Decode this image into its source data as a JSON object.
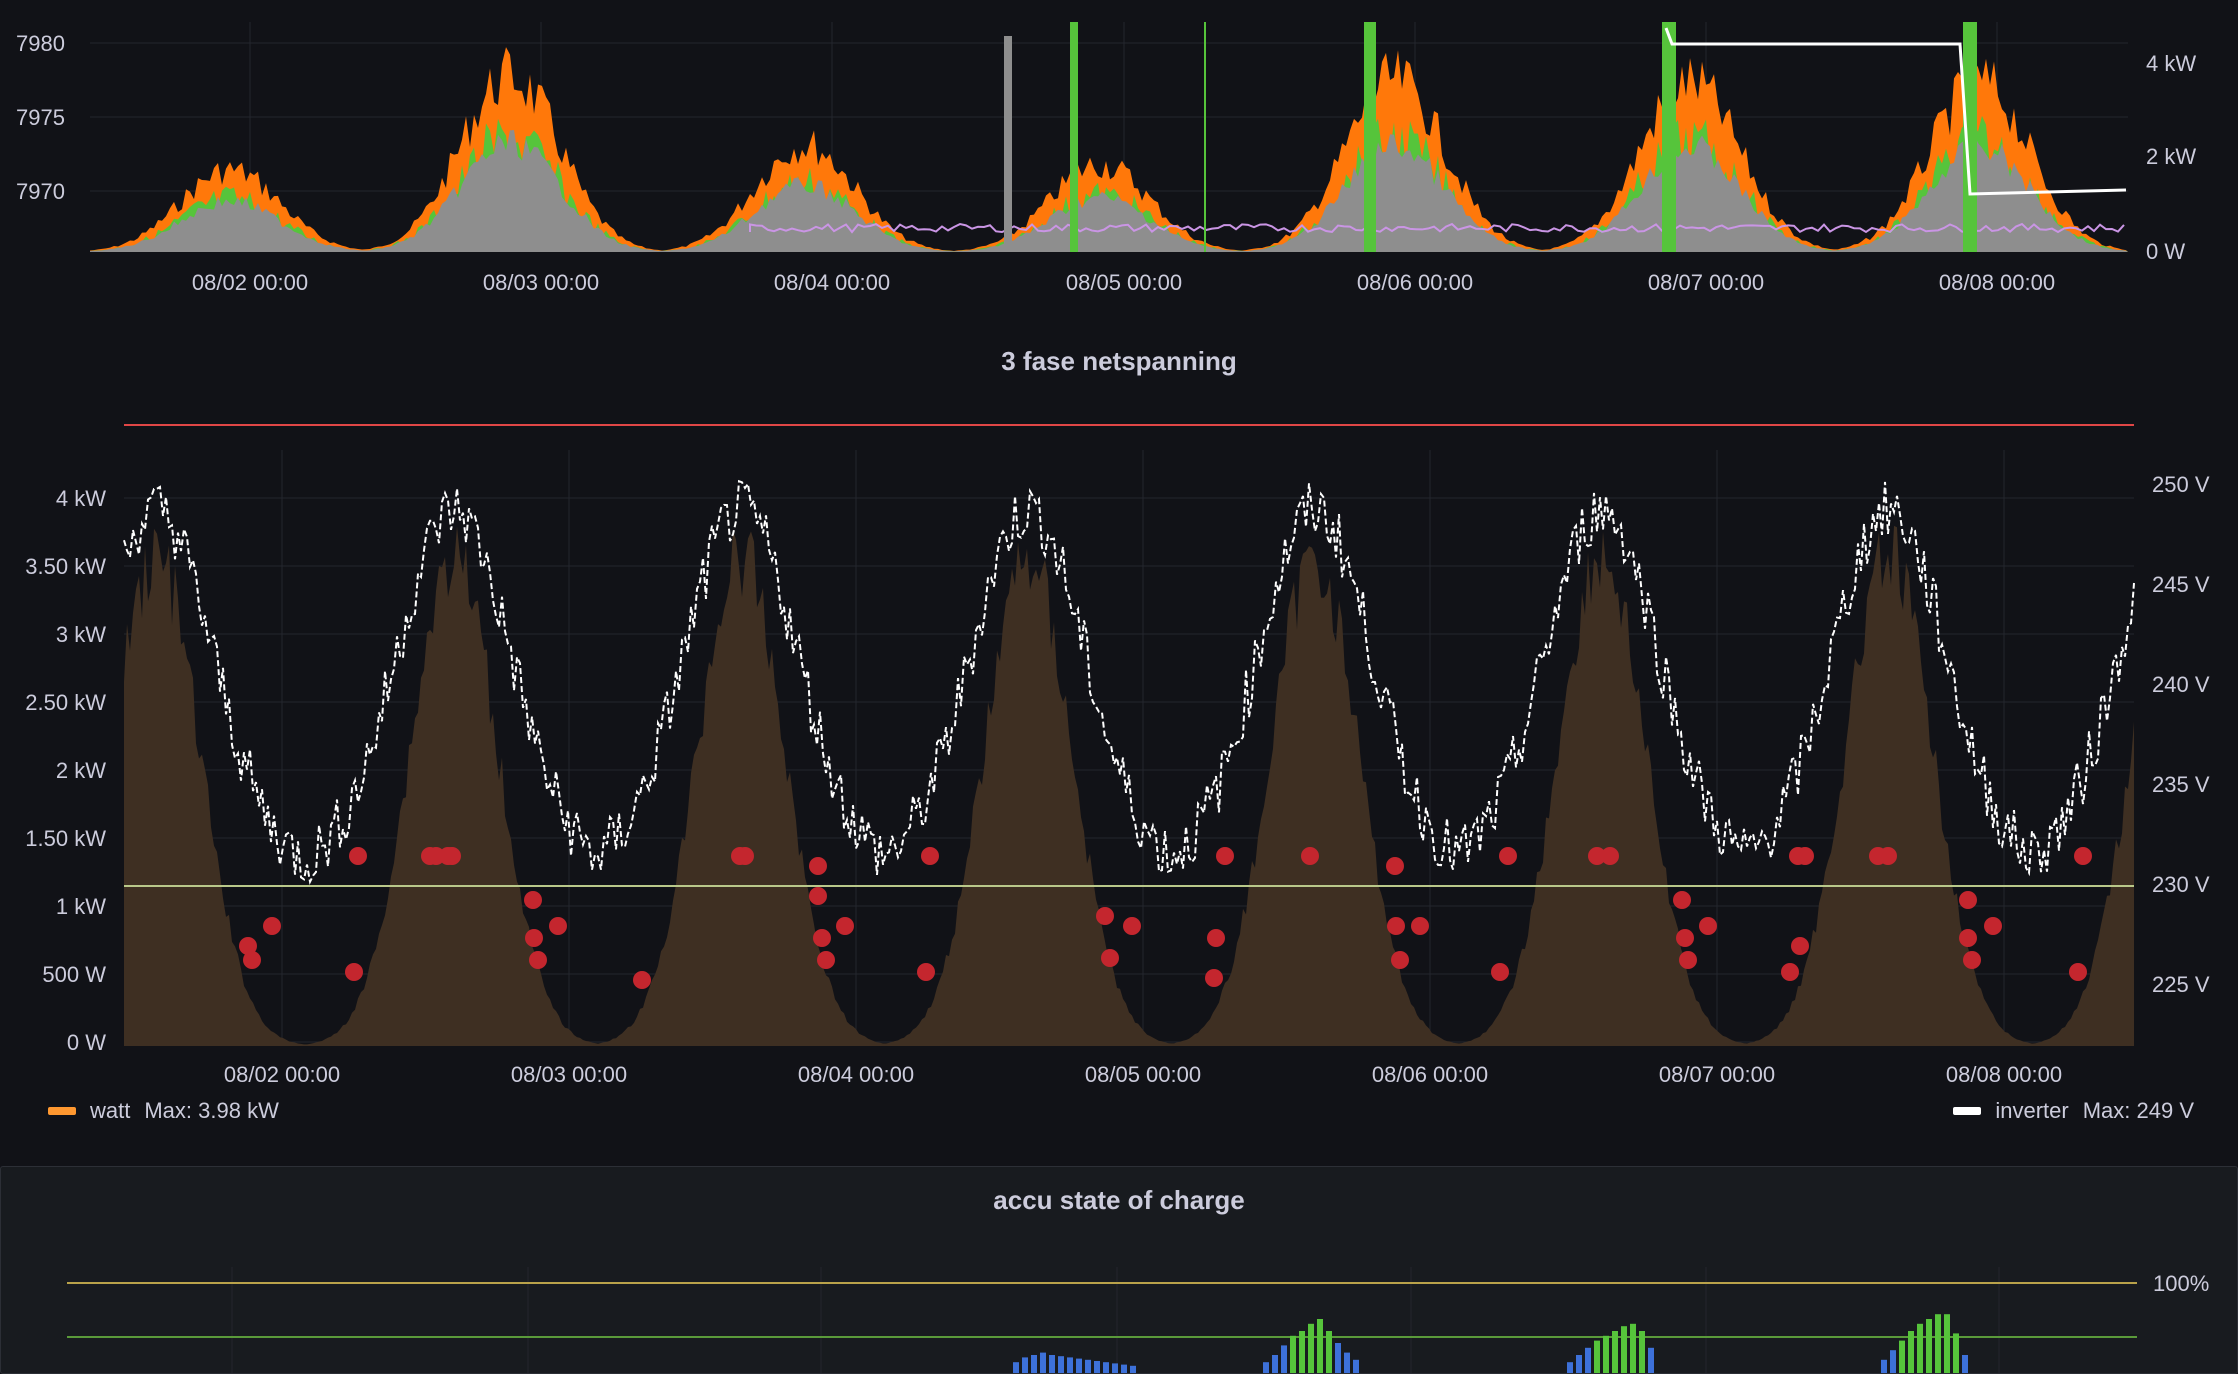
{
  "top_panel": {
    "left_axis_ticks": [
      "7980",
      "7975",
      "7970"
    ],
    "right_axis_ticks": [
      "4 kW",
      "2 kW",
      "0 W"
    ],
    "x_ticks": [
      "08/02 00:00",
      "08/03 00:00",
      "08/04 00:00",
      "08/05 00:00",
      "08/06 00:00",
      "08/07 00:00",
      "08/08 00:00"
    ]
  },
  "mid_panel": {
    "title": "3 fase netspanning",
    "left_axis_ticks": [
      "4 kW",
      "3.50 kW",
      "3 kW",
      "2.50 kW",
      "2 kW",
      "1.50 kW",
      "1 kW",
      "500 W",
      "0 W"
    ],
    "right_axis_ticks": [
      "250 V",
      "245 V",
      "240 V",
      "235 V",
      "230 V",
      "225 V"
    ],
    "x_ticks": [
      "08/02 00:00",
      "08/03 00:00",
      "08/04 00:00",
      "08/05 00:00",
      "08/06 00:00",
      "08/07 00:00",
      "08/08 00:00"
    ],
    "legend_left": {
      "name": "watt",
      "stat": "Max: 3.98 kW",
      "color": "#ff9830"
    },
    "legend_right": {
      "name": "inverter",
      "stat": "Max: 249 V",
      "color": "#ffffff"
    }
  },
  "bottom_panel": {
    "title": "accu state of charge",
    "right_axis_ticks": [
      "100%"
    ]
  },
  "colors": {
    "background": "#111217",
    "orange": "#ff780a",
    "green": "#56c43b",
    "gray": "#8e8e8e",
    "purple": "#ca95e5",
    "brown": "#3e2f22",
    "red_dot": "#c4262e",
    "blue_bar": "#3d71d9",
    "grid": "#24262d"
  }
}
